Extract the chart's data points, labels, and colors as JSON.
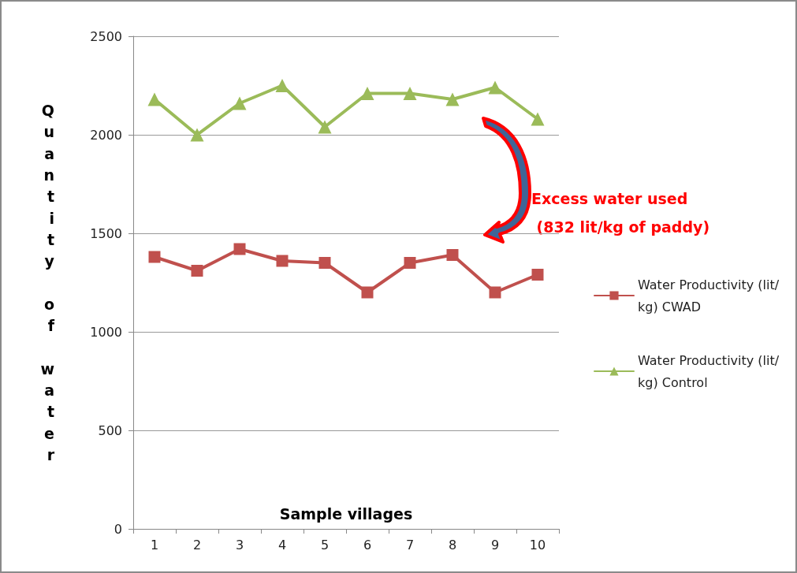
{
  "chart_data": {
    "type": "line",
    "xlabel": "Sample villages",
    "ylabel": "Quantity of water",
    "categories": [
      "1",
      "2",
      "3",
      "4",
      "5",
      "6",
      "7",
      "8",
      "9",
      "10"
    ],
    "series": [
      {
        "name": "Water Productivity (lit/kg) CWAD",
        "color": "#c0504d",
        "marker": "square",
        "values": [
          1380,
          1310,
          1420,
          1360,
          1350,
          1200,
          1350,
          1390,
          1200,
          1290
        ]
      },
      {
        "name": "Water Productivity (lit/kg) Control",
        "color": "#9bbb59",
        "marker": "triangle",
        "values": [
          2180,
          2000,
          2160,
          2250,
          2040,
          2210,
          2210,
          2180,
          2240,
          2080
        ]
      }
    ],
    "ylim": [
      0,
      2500
    ],
    "yticks": [
      0,
      500,
      1000,
      1500,
      2000,
      2500
    ],
    "grid": "y",
    "legend": "right",
    "annotations": [
      "Excess water used\n (832 lit/kg of paddy)"
    ]
  }
}
